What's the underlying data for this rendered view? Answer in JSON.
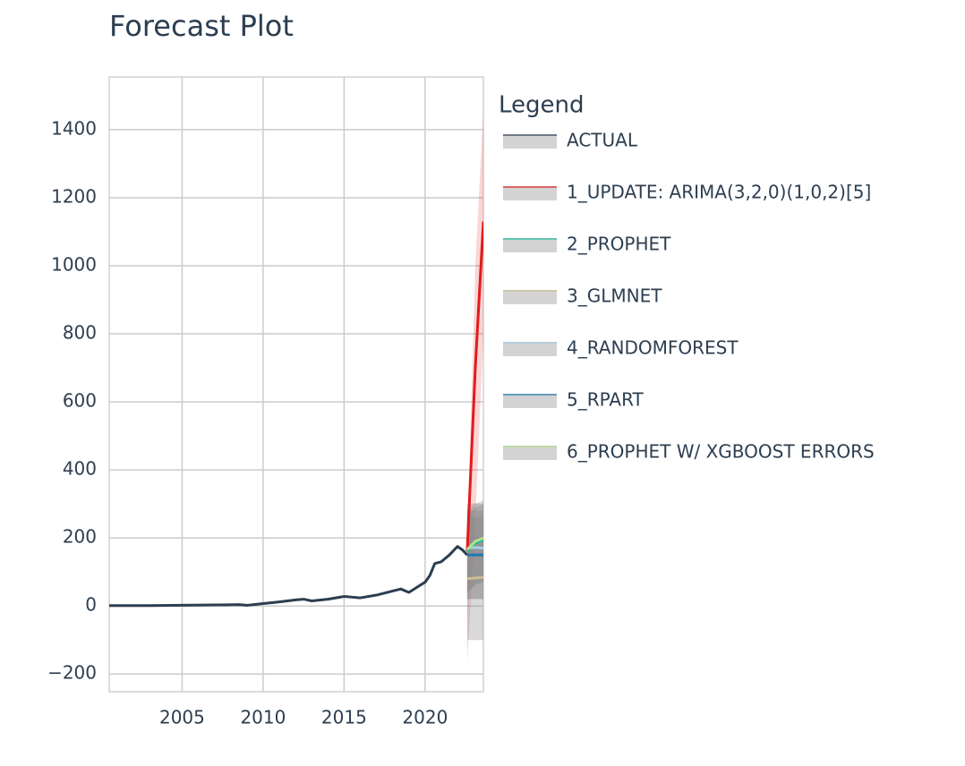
{
  "chart_data": {
    "type": "line",
    "title": "Forecast Plot",
    "legend_title": "Legend",
    "legend_position": "right",
    "grid": true,
    "xlim": [
      2000.5,
      2023.6
    ],
    "ylim": [
      -252,
      1555
    ],
    "xticks": [
      2005,
      2010,
      2015,
      2020
    ],
    "yticks": [
      {
        "value": -200,
        "label": "−200"
      },
      0,
      200,
      400,
      600,
      800,
      1000,
      1200,
      1400
    ],
    "series": [
      {
        "name": "ACTUAL",
        "color": "#2c3e50",
        "x": [
          2000.5,
          2003,
          2005,
          2007,
          2008.5,
          2009,
          2010,
          2011,
          2012,
          2012.5,
          2013,
          2014,
          2015,
          2015.5,
          2016,
          2017,
          2018,
          2018.5,
          2019,
          2019.5,
          2020,
          2020.3,
          2020.6,
          2021,
          2021.5,
          2022,
          2022.3,
          2022.6
        ],
        "values": [
          1,
          1,
          2,
          3,
          4,
          2,
          7,
          12,
          18,
          20,
          15,
          20,
          28,
          26,
          24,
          32,
          44,
          50,
          40,
          55,
          70,
          90,
          125,
          130,
          150,
          175,
          165,
          150
        ]
      },
      {
        "name": "1_UPDATE: ARIMA(3,2,0)(1,0,2)[5]",
        "color": "#e31a1c",
        "band_color": "rgba(227,26,28,0.18)",
        "x": [
          2022.6,
          2023.1,
          2023.6
        ],
        "values": [
          160,
          700,
          1130
        ],
        "lower": [
          -165,
          250,
          800
        ],
        "upper": [
          190,
          1000,
          1460
        ]
      },
      {
        "name": "2_PROPHET",
        "color": "#18bc9c",
        "band_color": "rgba(128,128,128,0.3)",
        "x": [
          2022.6,
          2023.1,
          2023.6
        ],
        "values": [
          160,
          185,
          195
        ],
        "lower": [
          40,
          60,
          70
        ],
        "upper": [
          270,
          290,
          300
        ]
      },
      {
        "name": "3_GLMNET",
        "color": "#ccbe93",
        "band_color": "rgba(128,128,128,0.3)",
        "x": [
          2022.6,
          2023.1,
          2023.6
        ],
        "values": [
          80,
          82,
          84
        ],
        "lower": [
          -100,
          -100,
          -100
        ],
        "upper": [
          260,
          262,
          264
        ]
      },
      {
        "name": "4_RANDOMFOREST",
        "color": "#a6cee3",
        "band_color": "rgba(128,128,128,0.3)",
        "x": [
          2022.6,
          2023.1,
          2023.6
        ],
        "values": [
          170,
          172,
          170
        ],
        "lower": [
          20,
          22,
          20
        ],
        "upper": [
          300,
          302,
          300
        ]
      },
      {
        "name": "5_RPART",
        "color": "#1f78b4",
        "band_color": "rgba(128,128,128,0.3)",
        "x": [
          2022.6,
          2023.1,
          2023.6
        ],
        "values": [
          150,
          150,
          150
        ],
        "lower": [
          20,
          20,
          20
        ],
        "upper": [
          280,
          280,
          280
        ]
      },
      {
        "name": "6_PROPHET W/ XGBOOST ERRORS",
        "color": "#b2df8a",
        "band_color": "rgba(128,128,128,0.3)",
        "x": [
          2022.6,
          2023.1,
          2023.6
        ],
        "values": [
          165,
          190,
          200
        ],
        "lower": [
          40,
          65,
          75
        ],
        "upper": [
          280,
          300,
          310
        ]
      }
    ]
  }
}
